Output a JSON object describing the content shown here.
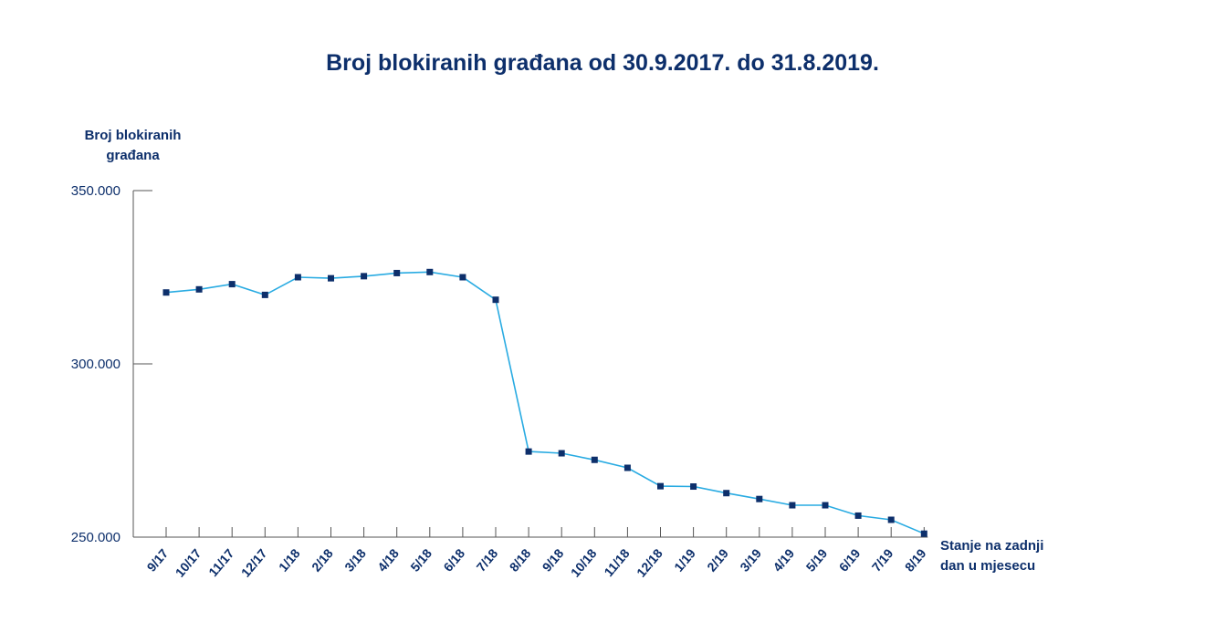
{
  "chart_data": {
    "type": "line",
    "title": "Broj blokiranih građana od 30.9.2017. do 31.8.2019.",
    "ylabel_line1": "Broj blokiranih",
    "ylabel_line2": "građana",
    "xlabel_line1": "Stanje na zadnji",
    "xlabel_line2": "dan u mjesecu",
    "categories": [
      "9/17",
      "10/17",
      "11/17",
      "12/17",
      "1/18",
      "2/18",
      "3/18",
      "4/18",
      "5/18",
      "6/18",
      "7/18",
      "8/18",
      "9/18",
      "10/18",
      "11/18",
      "12/18",
      "1/19",
      "2/19",
      "3/19",
      "4/19",
      "5/19",
      "6/19",
      "7/19",
      "8/19"
    ],
    "values": [
      320600,
      321500,
      323000,
      319900,
      325000,
      324700,
      325300,
      326200,
      326500,
      325000,
      318500,
      274700,
      274200,
      272300,
      270000,
      264700,
      264600,
      262700,
      261000,
      259200,
      259200,
      256200,
      255000,
      251000
    ],
    "ylim": [
      250000,
      350000
    ],
    "yticks": [
      250000,
      300000,
      350000
    ],
    "ytick_labels": [
      "250.000",
      "300.000",
      "350.000"
    ],
    "grid": false,
    "colors": {
      "line": "#29abe2",
      "marker": "#0d2f6b",
      "text": "#0d2f6b",
      "axis": "#555555"
    }
  }
}
